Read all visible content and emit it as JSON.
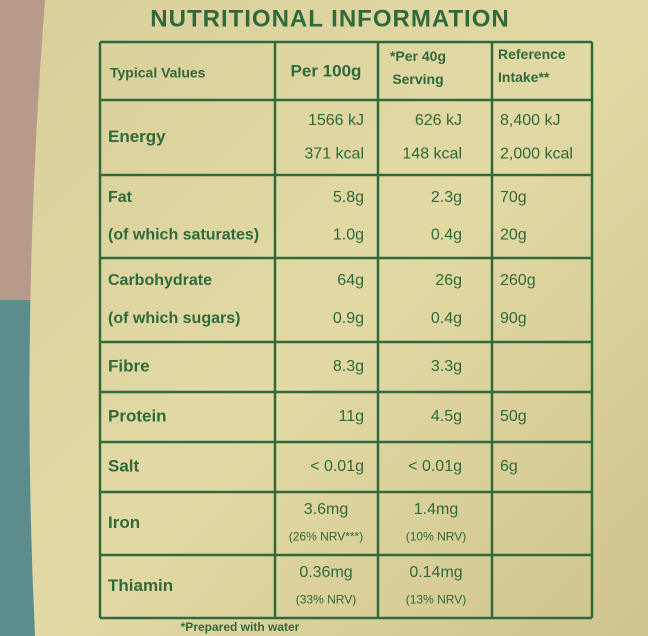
{
  "title": "NUTRITIONAL INFORMATION",
  "table": {
    "header": {
      "label": "Typical Values",
      "per100g": [
        "Per 100g"
      ],
      "per40g": [
        "*Per 40g",
        "Serving"
      ],
      "ri": [
        "Reference",
        "Intake**"
      ]
    },
    "rows": [
      {
        "label": [
          "Energy"
        ],
        "per100g": [
          "1566 kJ",
          "371 kcal"
        ],
        "per40g": [
          "626 kJ",
          "148 kcal"
        ],
        "ri": [
          "8,400 kJ",
          "2,000 kcal"
        ]
      },
      {
        "label": [
          "Fat",
          "(of which saturates)"
        ],
        "per100g": [
          "5.8g",
          "1.0g"
        ],
        "per40g": [
          "2.3g",
          "0.4g"
        ],
        "ri": [
          "70g",
          "20g"
        ]
      },
      {
        "label": [
          "Carbohydrate",
          "(of which sugars)"
        ],
        "per100g": [
          "64g",
          "0.9g"
        ],
        "per40g": [
          "26g",
          "0.4g"
        ],
        "ri": [
          "260g",
          "90g"
        ]
      },
      {
        "label": [
          "Fibre"
        ],
        "per100g": [
          "8.3g"
        ],
        "per40g": [
          "3.3g"
        ]
      },
      {
        "label": [
          "Protein"
        ],
        "per100g": [
          "11g"
        ],
        "per40g": [
          "4.5g"
        ],
        "ri": [
          "50g"
        ]
      },
      {
        "label": [
          "Salt"
        ],
        "per100g": [
          "< 0.01g"
        ],
        "per40g": [
          "< 0.01g"
        ],
        "ri": [
          "6g"
        ]
      },
      {
        "label": [
          "Iron"
        ],
        "per100g": [
          "3.6mg",
          "(26% NRV***)"
        ],
        "per40g": [
          "1.4mg",
          "(10% NRV)"
        ]
      },
      {
        "label": [
          "Thiamin"
        ],
        "per100g": [
          "0.36mg",
          "(33% NRV)"
        ],
        "per40g": [
          "0.14mg",
          "(13% NRV)"
        ]
      }
    ]
  },
  "footnote": "*Prepared with water"
}
